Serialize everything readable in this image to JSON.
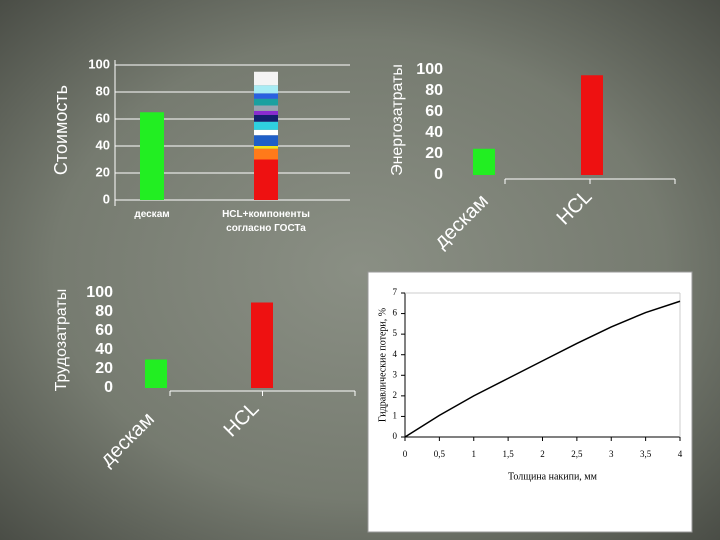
{
  "chart_data": [
    {
      "type": "bar",
      "ylabel": "Стоимость",
      "categories": [
        "дескам",
        "HCL+компоненты согласно ГОСТа"
      ],
      "ylim": [
        0,
        100
      ],
      "yticks": [
        0,
        20,
        40,
        60,
        80,
        100
      ],
      "grid": true,
      "series": [
        {
          "color": "#22ee22",
          "values": [
            65,
            null
          ]
        },
        {
          "color": "#ee1111",
          "values": [
            null,
            30
          ]
        },
        {
          "color": "#ff7a1a",
          "values": [
            null,
            8
          ]
        },
        {
          "color": "#f4e21a",
          "values": [
            null,
            2
          ]
        },
        {
          "color": "#1f5fc8",
          "values": [
            null,
            8
          ]
        },
        {
          "color": "#ffffff",
          "values": [
            null,
            4
          ]
        },
        {
          "color": "#2fd0e0",
          "values": [
            null,
            6
          ]
        },
        {
          "color": "#14206e",
          "values": [
            null,
            5
          ]
        },
        {
          "color": "#8a2bd0",
          "values": [
            null,
            3
          ]
        },
        {
          "color": "#9aa4b0",
          "values": [
            null,
            4
          ]
        },
        {
          "color": "#1aa0a0",
          "values": [
            null,
            5
          ]
        },
        {
          "color": "#2a60e0",
          "values": [
            null,
            4
          ]
        },
        {
          "color": "#a8ecf4",
          "values": [
            null,
            6
          ]
        },
        {
          "color": "#f4f4f4",
          "values": [
            null,
            10
          ]
        }
      ]
    },
    {
      "type": "bar",
      "ylabel": "Энергозатраты",
      "categories": [
        "дескам",
        "HCL"
      ],
      "ylim": [
        0,
        100
      ],
      "yticks": [
        0,
        20,
        40,
        60,
        80,
        100
      ],
      "grid": false,
      "series": [
        {
          "color": "#22ee22",
          "values": [
            25,
            null
          ]
        },
        {
          "color": "#ee1111",
          "values": [
            null,
            95
          ]
        }
      ]
    },
    {
      "type": "bar",
      "ylabel": "Трудозатраты",
      "categories": [
        "дескам",
        "HCL"
      ],
      "ylim": [
        0,
        100
      ],
      "yticks": [
        0,
        20,
        40,
        60,
        80,
        100
      ],
      "grid": false,
      "series": [
        {
          "color": "#22ee22",
          "values": [
            30,
            null
          ]
        },
        {
          "color": "#ee1111",
          "values": [
            null,
            90
          ]
        }
      ]
    },
    {
      "type": "line",
      "xlabel": "Толщина накипи, мм",
      "ylabel": "Гидравлические потери, %",
      "x": [
        0,
        0.5,
        1,
        1.5,
        2,
        2.5,
        3,
        3.5,
        4
      ],
      "xlim": [
        0,
        4
      ],
      "ylim": [
        0,
        7
      ],
      "xticks": [
        0,
        {
          "value": 0.5,
          "label": "0,5"
        },
        1,
        {
          "value": 1.5,
          "label": "1,5"
        },
        2,
        {
          "value": 2.5,
          "label": "2,5"
        },
        3,
        {
          "value": 3.5,
          "label": "3,5"
        },
        4
      ],
      "yticks": [
        0,
        1,
        2,
        3,
        4,
        5,
        6,
        7
      ],
      "series": [
        {
          "color": "#000000",
          "values": [
            0,
            1.05,
            2.0,
            2.85,
            3.7,
            4.55,
            5.35,
            6.05,
            6.6
          ]
        }
      ]
    }
  ]
}
